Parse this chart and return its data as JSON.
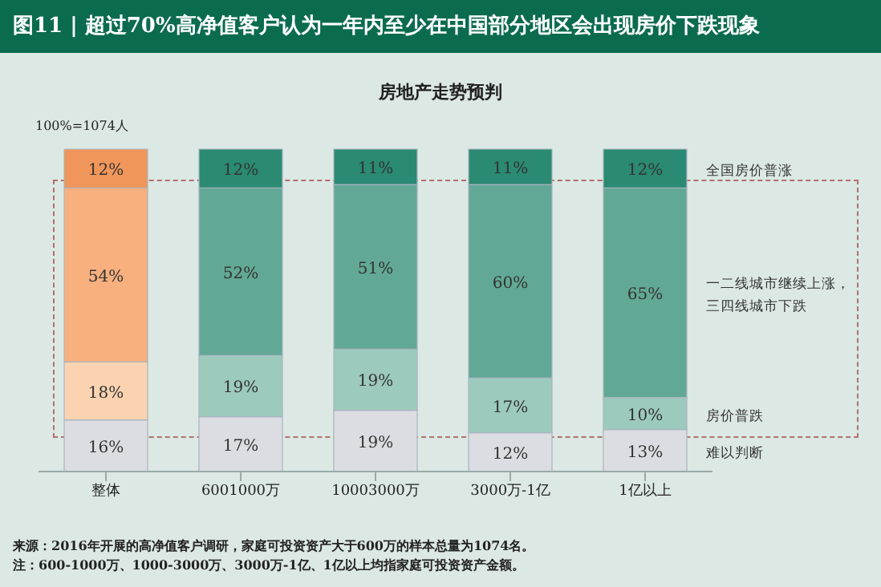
{
  "chart_data": {
    "type": "bar",
    "stacked": true,
    "title": "图11 | 超过70%高净值客户认为一年内至少在中国部分地区会出现房价下跌现象",
    "subtitle": "房地产走势预判",
    "categories": [
      "整体",
      "6001000万",
      "10003000万",
      "3000万-1亿",
      "1亿以上"
    ],
    "series": [
      {
        "name": "难以判断",
        "colors": [
          "#dcdde2",
          "#dcdde2",
          "#dcdde2",
          "#dcdde2",
          "#dcdde2"
        ],
        "values": [
          16,
          17,
          19,
          12,
          13
        ],
        "value_labels": [
          "16%",
          "17%",
          "19%",
          "12%",
          "13%"
        ]
      },
      {
        "name": "房价普跌",
        "colors": [
          "#fbd3b0",
          "#9ccabc",
          "#9ccabc",
          "#9ccabc",
          "#9ccabc"
        ],
        "values": [
          18,
          19,
          19,
          17,
          10
        ],
        "value_labels": [
          "18%",
          "19%",
          "19%",
          "17%",
          "10%"
        ]
      },
      {
        "name": "一二线城市继续上涨，三四线城市下跌",
        "colors": [
          "#f7b07e",
          "#62a896",
          "#62a896",
          "#62a896",
          "#62a896"
        ],
        "values": [
          54,
          52,
          51,
          60,
          65
        ],
        "value_labels": [
          "54%",
          "52%",
          "51%",
          "60%",
          "65%"
        ]
      },
      {
        "name": "全国房价普涨",
        "colors": [
          "#f0965a",
          "#2a8a72",
          "#2a8a72",
          "#2a8a72",
          "#2a8a72"
        ],
        "values": [
          12,
          12,
          11,
          11,
          12
        ],
        "value_labels": [
          "12%",
          "12%",
          "11%",
          "11%",
          "12%"
        ]
      }
    ],
    "legend": false,
    "annotations": [
      "100%=1074人",
      "来源：2016年开展的高净值客户调研，家庭可投资资产大于600万的样本总量为1074名。",
      "注：600-1000万、1000-3000万、3000万-1亿、1亿以上均指家庭可投资资产金额。"
    ]
  }
}
